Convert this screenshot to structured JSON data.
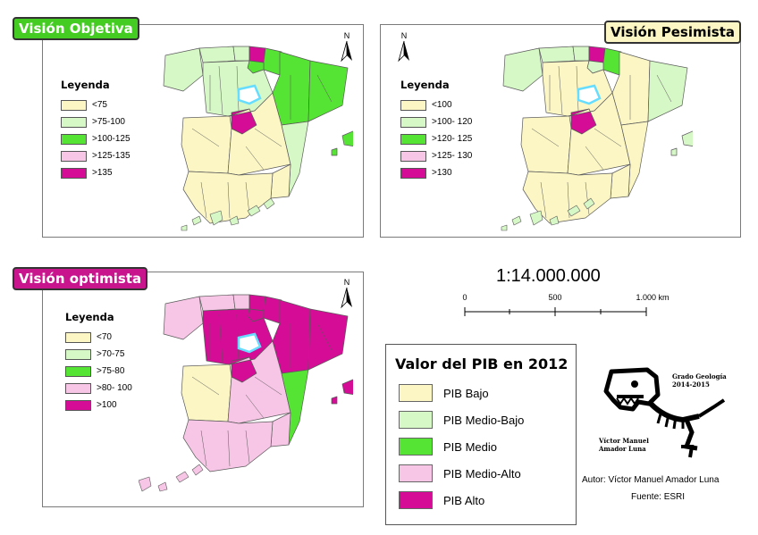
{
  "panels": {
    "objetiva": {
      "title": "Visión Objetiva",
      "title_color": "#44cc22",
      "legend_title": "Leyenda",
      "items": [
        {
          "label": "<75",
          "color": "#fbf6c4"
        },
        {
          "label": ">75-100",
          "color": "#d6f7c6"
        },
        {
          "label": ">100-125",
          "color": "#55e433"
        },
        {
          "label": ">125-135",
          "color": "#f7c6e6"
        },
        {
          "label": ">135",
          "color": "#d40c96"
        }
      ]
    },
    "pesimista": {
      "title": "Visión Pesimista",
      "title_color": "#fbf6c4",
      "legend_title": "Leyenda",
      "items": [
        {
          "label": "<100",
          "color": "#fbf6c4"
        },
        {
          "label": ">100- 120",
          "color": "#d6f7c6"
        },
        {
          "label": ">120- 125",
          "color": "#55e433"
        },
        {
          "label": ">125- 130",
          "color": "#f7c6e6"
        },
        {
          "label": ">130",
          "color": "#d40c96"
        }
      ]
    },
    "optimista": {
      "title": "Visión optimista",
      "title_color": "#c8158e",
      "legend_title": "Leyenda",
      "items": [
        {
          "label": "<70",
          "color": "#fbf6c4"
        },
        {
          "label": ">70-75",
          "color": "#d6f7c6"
        },
        {
          "label": ">75-80",
          "color": "#55e433"
        },
        {
          "label": ">80- 100",
          "color": "#f7c6e6"
        },
        {
          "label": ">100",
          "color": "#d40c96"
        }
      ]
    }
  },
  "north_label": "N",
  "scale": {
    "ratio": "1:14.000.000",
    "ticks": [
      "0",
      "500",
      "1.000 km"
    ]
  },
  "value_legend": {
    "title": "Valor del PIB en 2012",
    "items": [
      {
        "label": "PIB Bajo",
        "color": "#fbf6c4"
      },
      {
        "label": "PIB Medio-Bajo",
        "color": "#d6f7c6"
      },
      {
        "label": "PIB Medio",
        "color": "#55e433"
      },
      {
        "label": "PIB Medio-Alto",
        "color": "#f7c6e6"
      },
      {
        "label": "PIB Alto",
        "color": "#d40c96"
      }
    ]
  },
  "logo": {
    "line1": "Grado Geología",
    "line2": "2014-2015",
    "name1": "Víctor Manuel",
    "name2": "Amador Luna"
  },
  "author": "Autor: Víctor Manuel Amador Luna",
  "source": "Fuente: ESRI",
  "colors": {
    "madrid_outline": "#66ddff",
    "border": "#5a5a5a"
  }
}
